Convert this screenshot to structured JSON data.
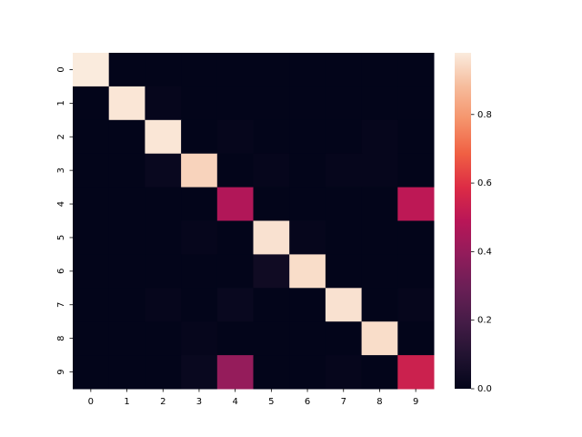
{
  "chart_data": {
    "type": "heatmap",
    "x_categories": [
      "0",
      "1",
      "2",
      "3",
      "4",
      "5",
      "6",
      "7",
      "8",
      "9"
    ],
    "y_categories": [
      "0",
      "1",
      "2",
      "3",
      "4",
      "5",
      "6",
      "7",
      "8",
      "9"
    ],
    "values": [
      [
        0.98,
        0,
        0,
        0,
        0,
        0,
        0,
        0,
        0,
        0
      ],
      [
        0,
        0.97,
        0.01,
        0,
        0,
        0,
        0,
        0,
        0,
        0
      ],
      [
        0,
        0,
        0.97,
        0,
        0.01,
        0,
        0,
        0,
        0.01,
        0
      ],
      [
        0,
        0,
        0.02,
        0.93,
        0,
        0.01,
        0,
        0.01,
        0.01,
        0
      ],
      [
        0,
        0,
        0,
        0,
        0.47,
        0,
        0,
        0,
        0,
        0.5
      ],
      [
        0,
        0,
        0,
        0.01,
        0,
        0.96,
        0.01,
        0,
        0,
        0
      ],
      [
        0,
        0,
        0,
        0,
        0,
        0.04,
        0.95,
        0,
        0,
        0
      ],
      [
        0,
        0,
        0.01,
        0,
        0.02,
        0,
        0,
        0.96,
        0,
        0.01
      ],
      [
        0,
        0,
        0,
        0.01,
        0,
        0,
        0,
        0,
        0.95,
        0
      ],
      [
        0,
        0,
        0,
        0.02,
        0.4,
        0,
        0,
        0.01,
        0,
        0.54
      ]
    ],
    "colormap": "rocket",
    "zlim": [
      0,
      0.98
    ],
    "zticks": [
      {
        "value": 0,
        "label": "0.0"
      },
      0.2,
      0.4,
      0.6,
      0.8
    ]
  }
}
